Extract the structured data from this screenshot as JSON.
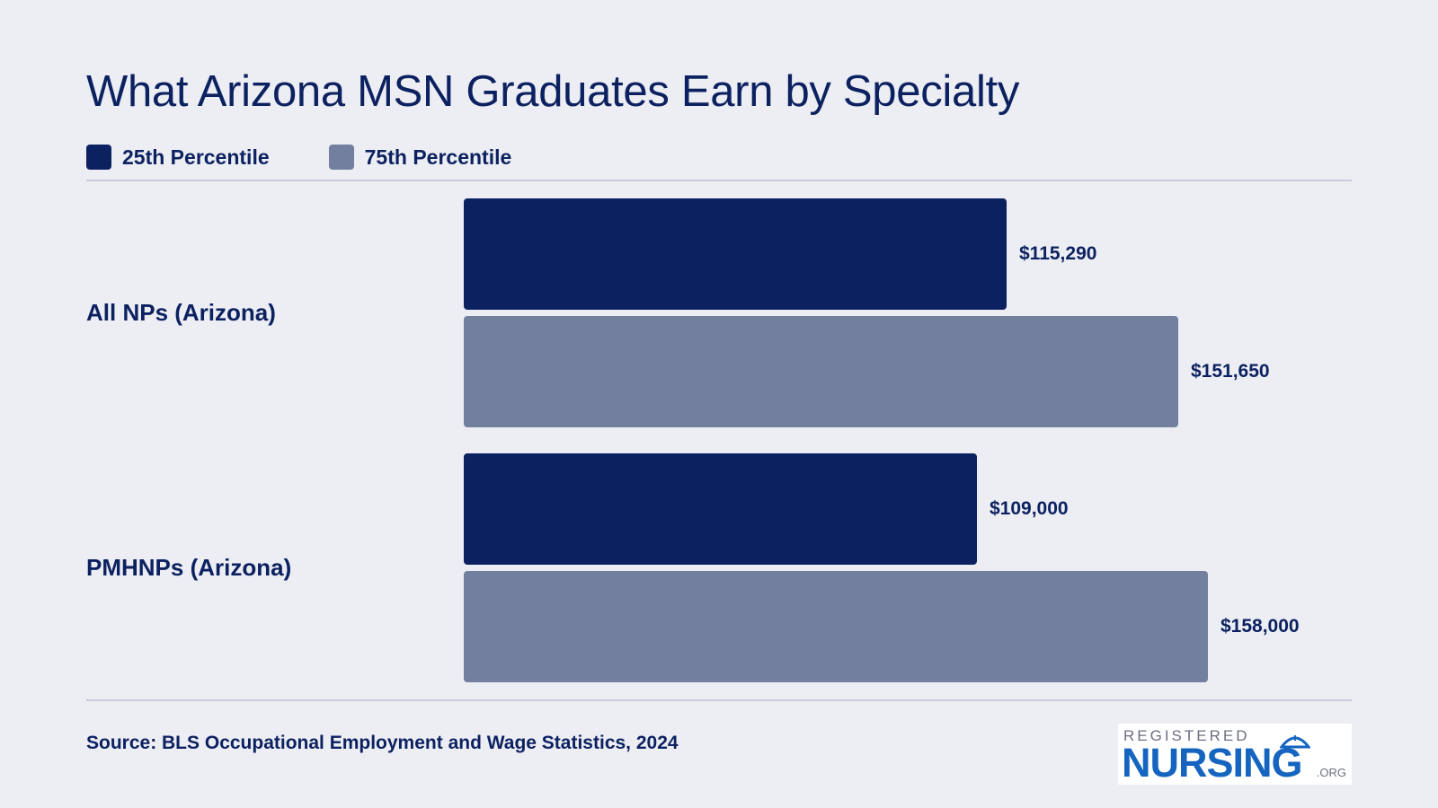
{
  "colors": {
    "background": "#edeef4",
    "text": "#0c2160",
    "p25": "#0c2160",
    "p75": "#727f9f",
    "rule": "#c9ccd8",
    "logo_blue": "#1565c0"
  },
  "chart_data": {
    "type": "bar",
    "orientation": "horizontal",
    "title": "What Arizona MSN Graduates Earn by Specialty",
    "categories": [
      "All NPs (Arizona)",
      "PMHNPs (Arizona)"
    ],
    "series": [
      {
        "name": "25th Percentile",
        "values": [
          115290,
          109000
        ],
        "labels": [
          "$115,290",
          "$109,000"
        ],
        "color": "#0c2160"
      },
      {
        "name": "75th Percentile",
        "values": [
          151650,
          158000
        ],
        "labels": [
          "$151,650",
          "$158,000"
        ],
        "color": "#727f9f"
      }
    ],
    "xlim": [
      0,
      158000
    ],
    "grid": false,
    "legend_position": "top-left"
  },
  "source": "Source: BLS Occupational Employment and Wage Statistics, 2024",
  "logo": {
    "top": "REGISTERED",
    "main": "NURSING",
    "suffix": ".ORG"
  }
}
